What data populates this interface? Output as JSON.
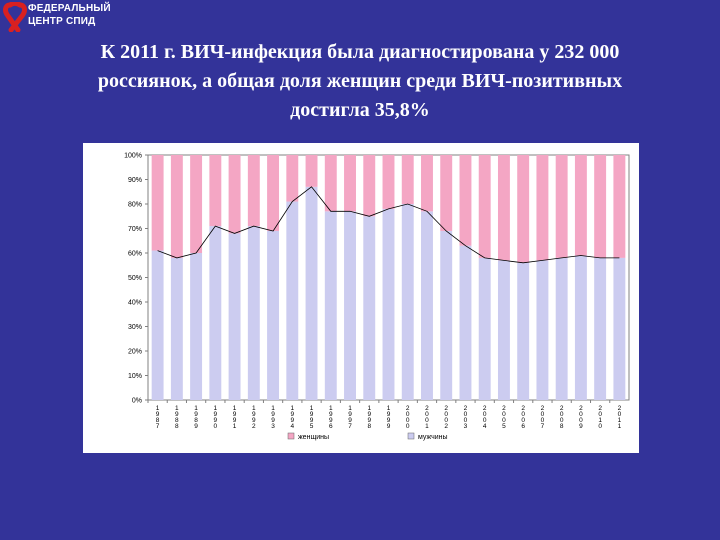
{
  "logo": {
    "line1": "ФЕДЕРАЛЬНЫЙ",
    "line2": "ЦЕНТР СПИД",
    "colors": {
      "ribbon": "#d92020",
      "text": "#ffffff"
    }
  },
  "title": {
    "line1": "К 2011 г. ВИЧ-инфекция была диагностирована у 232 000",
    "line2": "россиянок, а общая доля женщин  среди ВИЧ-позитивных",
    "line3": "достигла 35,8%"
  },
  "chart_data": {
    "type": "bar",
    "stacked": true,
    "categories": [
      "1987",
      "1988",
      "1989",
      "1990",
      "1991",
      "1992",
      "1993",
      "1994",
      "1995",
      "1996",
      "1997",
      "1998",
      "1999",
      "2000",
      "2001",
      "2002",
      "2003",
      "2004",
      "2005",
      "2006",
      "2007",
      "2008",
      "2009",
      "2010",
      "2011"
    ],
    "series": [
      {
        "name": "мужчины",
        "color": "#ccccf0",
        "values": [
          61,
          58,
          60,
          71,
          68,
          71,
          69,
          81,
          87,
          77,
          77,
          75,
          78,
          80,
          77,
          69,
          63,
          58,
          57,
          56,
          57,
          58,
          59,
          58,
          58
        ]
      },
      {
        "name": "женщины",
        "color": "#f4a6c4",
        "values": [
          39,
          42,
          40,
          29,
          32,
          29,
          31,
          19,
          13,
          23,
          23,
          25,
          22,
          20,
          23,
          31,
          37,
          42,
          43,
          44,
          43,
          42,
          41,
          42,
          42
        ]
      }
    ],
    "yticks": [
      "0%",
      "10%",
      "20%",
      "30%",
      "40%",
      "50%",
      "60%",
      "70%",
      "80%",
      "90%",
      "100%"
    ],
    "ylim": [
      0,
      100
    ],
    "legend_position": "bottom",
    "grid": false,
    "line_overlay": "мужчины"
  }
}
